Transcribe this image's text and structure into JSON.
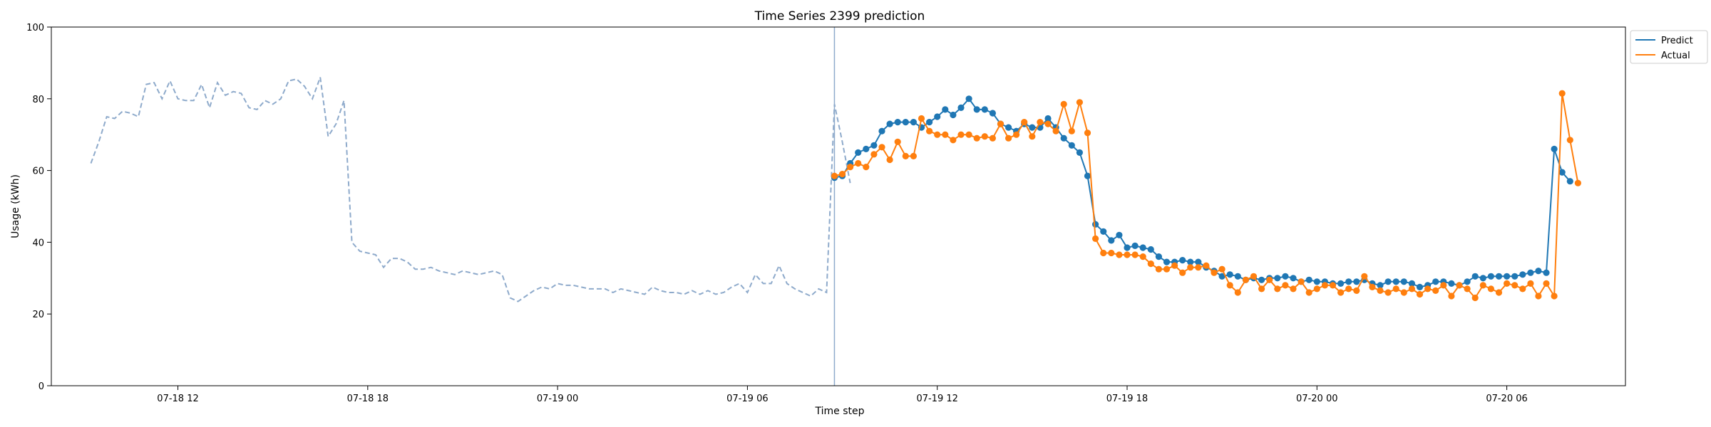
{
  "chart_data": {
    "type": "line",
    "title": "Time Series 2399 prediction",
    "xlabel": "Time step",
    "ylabel": "Usage (kWh)",
    "ylim": [
      0,
      100
    ],
    "yticks": [
      0,
      20,
      40,
      60,
      80,
      100
    ],
    "x_start": "2024-07-18 08:00",
    "x_end": "2024-07-20 09:45",
    "xticks": [
      {
        "t": "2024-07-18 12:00",
        "label": "07-18 12"
      },
      {
        "t": "2024-07-18 18:00",
        "label": "07-18 18"
      },
      {
        "t": "2024-07-19 00:00",
        "label": "07-19 00"
      },
      {
        "t": "2024-07-19 06:00",
        "label": "07-19 06"
      },
      {
        "t": "2024-07-19 12:00",
        "label": "07-19 12"
      },
      {
        "t": "2024-07-19 18:00",
        "label": "07-19 18"
      },
      {
        "t": "2024-07-20 00:00",
        "label": "07-20 00"
      },
      {
        "t": "2024-07-20 06:00",
        "label": "07-20 06"
      }
    ],
    "forecast_start": "2024-07-19 08:45",
    "legend_position": "top-right",
    "colors": {
      "history": "#8eaacb",
      "predict": "#1f77b4",
      "actual": "#ff7f0e",
      "divider": "#8eaacb"
    },
    "history": {
      "start": "2024-07-18 09:15",
      "step_minutes": 15,
      "values": [
        62,
        68,
        75,
        74.5,
        76.5,
        76,
        75,
        84,
        84.5,
        80,
        85,
        80,
        79.5,
        79.5,
        84,
        77.5,
        84.5,
        81,
        82,
        81.5,
        77.5,
        77,
        79.5,
        78.5,
        80,
        85,
        85.5,
        83.5,
        80,
        86,
        69.5,
        73,
        79.5,
        40,
        37.5,
        37,
        36.5,
        33,
        35.5,
        35.5,
        34.5,
        32.5,
        32.5,
        33,
        32,
        31.5,
        31,
        32,
        31.5,
        31,
        31.5,
        32,
        31,
        24.5,
        23.5,
        25,
        26.5,
        27.5,
        27,
        28.5,
        28,
        28,
        27.5,
        27,
        27,
        27,
        26,
        27,
        26.5,
        26,
        25.5,
        27.5,
        26.5,
        26,
        26,
        25.5,
        26.5,
        25.5,
        26.5,
        25.5,
        26,
        27.5,
        28.5,
        26,
        31,
        28.5,
        28.5,
        33.5,
        28.5,
        27,
        26,
        25,
        27,
        26,
        78.5,
        68,
        56.5
      ]
    },
    "series": [
      {
        "name": "Predict",
        "start": "2024-07-19 08:45",
        "step_minutes": 15,
        "values": [
          58,
          58.5,
          62,
          65,
          66,
          67,
          71,
          73,
          73.5,
          73.5,
          73.5,
          72,
          73.5,
          75,
          77,
          75.5,
          77.5,
          80,
          77,
          77,
          76,
          73,
          72,
          71,
          73,
          72,
          72,
          74.5,
          72,
          69,
          67,
          65,
          58.5,
          45,
          43,
          40.5,
          42,
          38.5,
          39,
          38.5,
          38,
          36,
          34.5,
          34.5,
          35,
          34.5,
          34.5,
          33,
          32,
          30.5,
          31,
          30.5,
          29.5,
          30,
          29.5,
          30,
          30,
          30.5,
          30,
          29,
          29.5,
          29,
          29,
          28.5,
          28.5,
          29,
          29,
          29.5,
          28.5,
          28,
          29,
          29,
          29,
          28.5,
          27.5,
          28,
          29,
          29,
          28.5,
          28,
          29,
          30.5,
          30,
          30.5,
          30.5,
          30.5,
          30.5,
          31,
          31.5,
          32,
          31.5,
          66,
          59.5,
          57
        ]
      },
      {
        "name": "Actual",
        "start": "2024-07-19 08:45",
        "step_minutes": 15,
        "values": [
          58.5,
          59,
          61,
          62,
          61,
          64.5,
          66.5,
          63,
          68,
          64,
          64,
          74.5,
          71,
          70,
          70,
          68.5,
          70,
          70,
          69,
          69.5,
          69,
          73,
          69,
          70,
          73.5,
          69.5,
          73.5,
          73,
          71,
          78.5,
          71,
          79,
          70.5,
          41,
          37,
          37,
          36.5,
          36.5,
          36.5,
          36,
          34,
          32.5,
          32.5,
          33.5,
          31.5,
          33,
          33,
          33.5,
          31.5,
          32.5,
          28,
          26,
          29.5,
          30.5,
          27,
          29.5,
          27,
          28,
          27,
          29,
          26,
          27,
          28,
          28,
          26,
          27,
          26.5,
          30.5,
          27.5,
          26.5,
          26,
          27,
          26,
          27,
          25.5,
          27,
          26.5,
          28,
          25,
          28,
          27,
          24.5,
          28,
          27,
          26,
          28.5,
          28,
          27,
          28.5,
          25,
          28.5,
          25,
          81.5,
          68.5,
          56.5
        ]
      }
    ]
  }
}
